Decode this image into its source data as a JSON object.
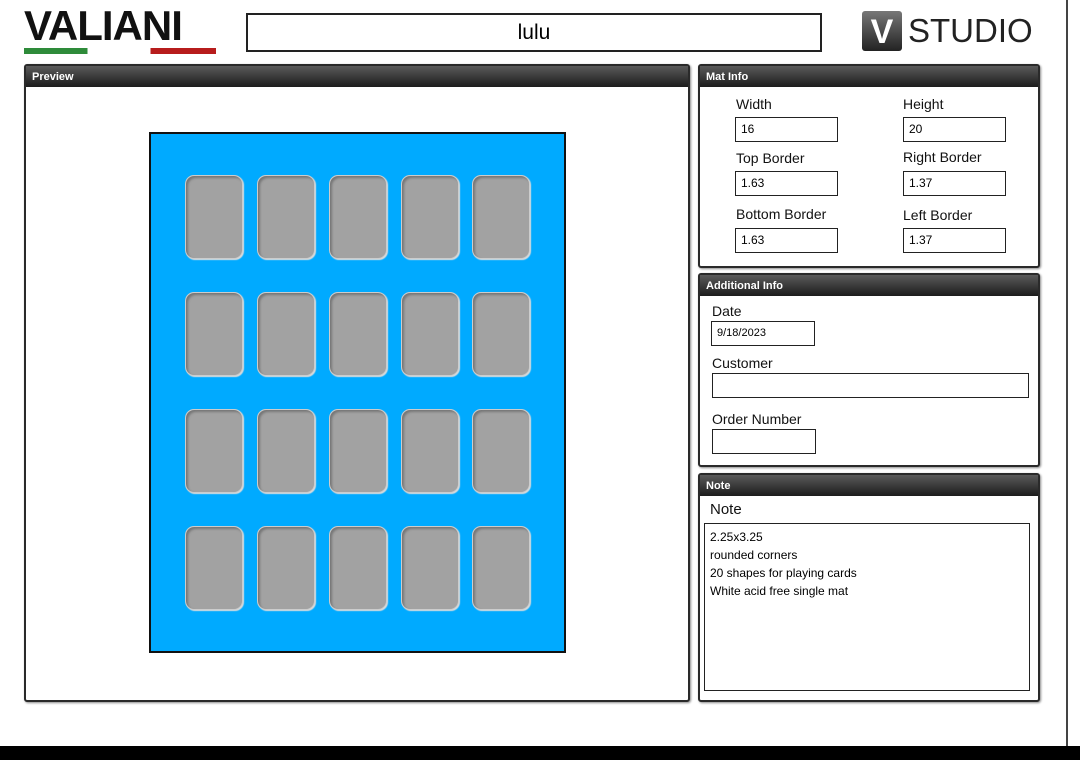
{
  "header": {
    "brand": "VALIANI",
    "search": "lulu",
    "logo_letter": "V",
    "logo_text": "STUDIO"
  },
  "preview": {
    "title": "Preview"
  },
  "mat_info": {
    "title": "Mat Info",
    "fields": [
      {
        "label": "Width",
        "value": 16
      },
      {
        "label": "Height",
        "value": 20
      },
      {
        "label": "Top Border",
        "value": 1.63
      },
      {
        "label": "Right Border",
        "value": 1.37
      },
      {
        "label": "Bottom Border",
        "value": 1.63
      },
      {
        "label": "Left Border",
        "value": 1.37
      }
    ]
  },
  "additional_info": {
    "title": "Additional Info",
    "fields": [
      {
        "label": "Date",
        "value": "9/18/2023"
      },
      {
        "label": "Customer"
      },
      {
        "label": "Order Number"
      }
    ]
  },
  "note": {
    "title": "Note",
    "label": "Note",
    "lines": [
      "2.25x3.25",
      "rounded corners",
      "20 shapes for playing cards",
      "White acid free single mat"
    ]
  }
}
